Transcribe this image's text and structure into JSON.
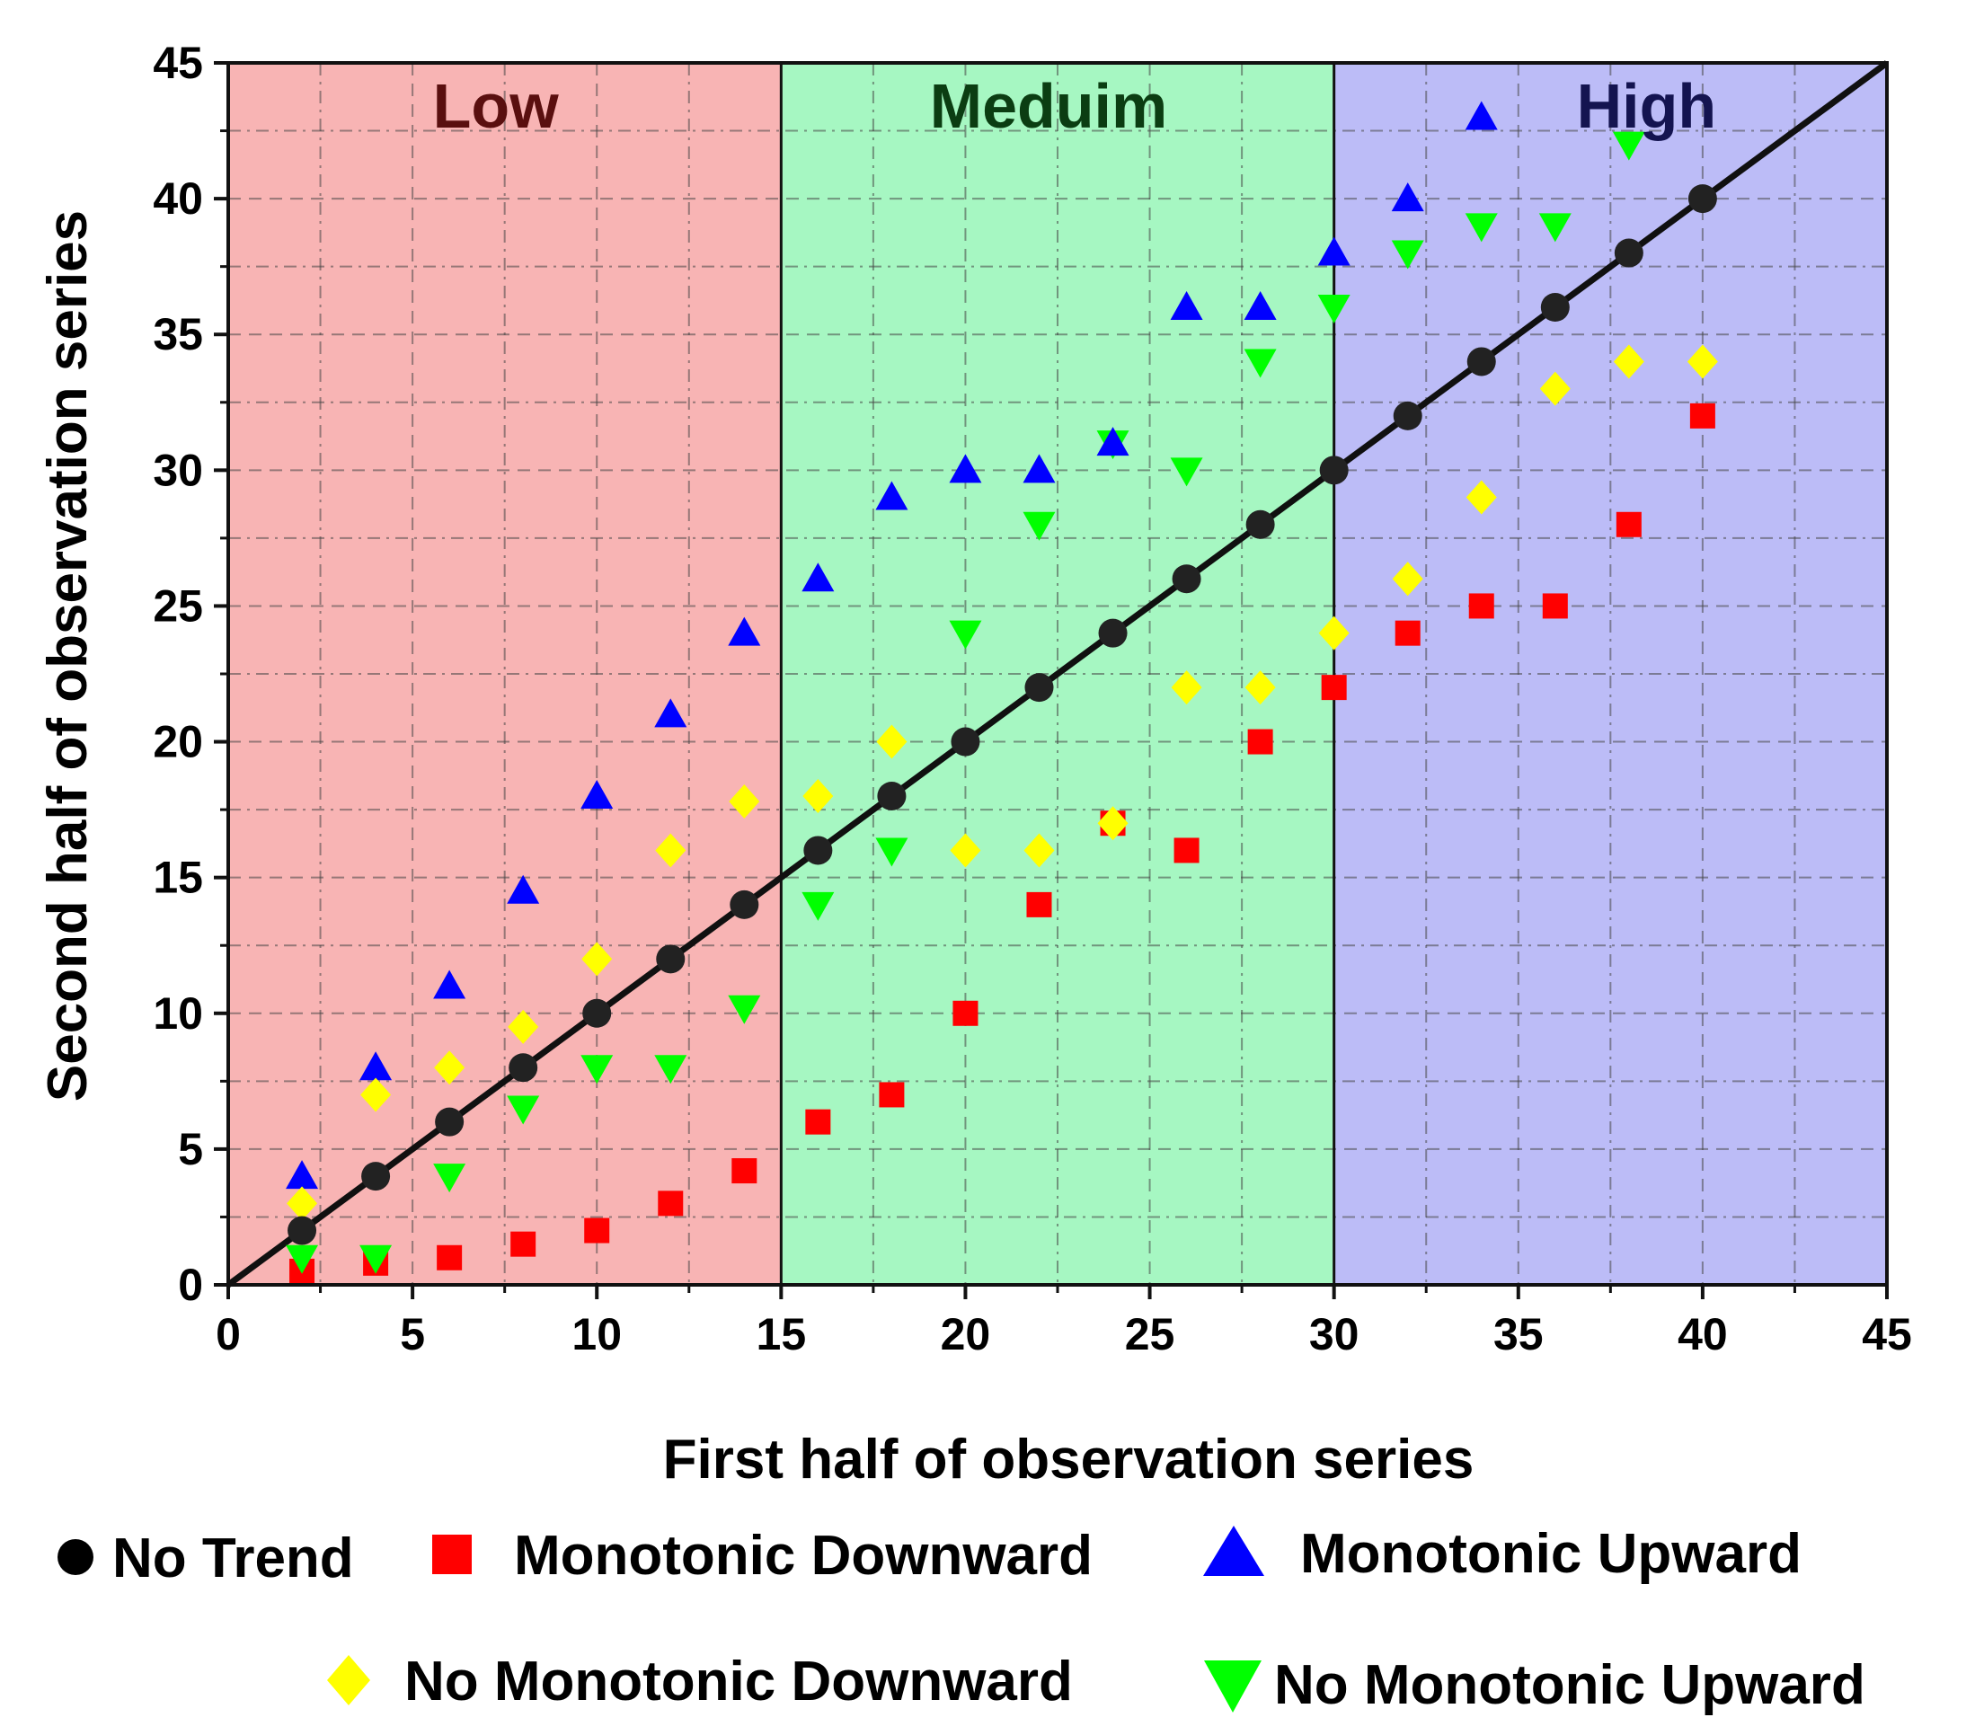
{
  "chart_data": {
    "type": "scatter",
    "title": "",
    "xlabel": "First half of observation series",
    "ylabel": "Second half of observation series",
    "xlim": [
      0,
      45
    ],
    "ylim": [
      0,
      45
    ],
    "xticks": [
      "0",
      "5",
      "10",
      "15",
      "20",
      "25",
      "30",
      "35",
      "40",
      "45"
    ],
    "yticks": [
      "0",
      "5",
      "10",
      "15",
      "20",
      "25",
      "30",
      "35",
      "40",
      "45"
    ],
    "grid": true,
    "regions": [
      {
        "name": "Low",
        "x_range": [
          0,
          15
        ],
        "color": "#f8b4b4",
        "label_color": "#5a0f0f"
      },
      {
        "name": "Meduim",
        "x_range": [
          15,
          30
        ],
        "color": "#a6f7c2",
        "label_color": "#0b3d12"
      },
      {
        "name": "High",
        "x_range": [
          30,
          45
        ],
        "color": "#bcbcf7",
        "label_color": "#141450"
      }
    ],
    "reference_line": {
      "name": "1:1 line",
      "from": [
        0,
        0
      ],
      "to": [
        45,
        45
      ]
    },
    "series": [
      {
        "name": "No Trend",
        "marker": "circle",
        "color": "#222222",
        "points": [
          [
            2,
            2
          ],
          [
            4,
            4
          ],
          [
            6,
            6
          ],
          [
            8,
            8
          ],
          [
            10,
            10
          ],
          [
            12,
            12
          ],
          [
            14,
            14
          ],
          [
            16,
            16
          ],
          [
            18,
            18
          ],
          [
            20,
            20
          ],
          [
            22,
            22
          ],
          [
            24,
            24
          ],
          [
            26,
            26
          ],
          [
            28,
            28
          ],
          [
            30,
            30
          ],
          [
            32,
            32
          ],
          [
            34,
            34
          ],
          [
            36,
            36
          ],
          [
            38,
            38
          ],
          [
            40,
            40
          ]
        ]
      },
      {
        "name": "Monotonic Downward",
        "marker": "square",
        "color": "#ff0000",
        "points": [
          [
            2,
            0.5
          ],
          [
            4,
            0.8
          ],
          [
            6,
            1
          ],
          [
            8,
            1.5
          ],
          [
            10,
            2
          ],
          [
            12,
            3
          ],
          [
            14,
            4.2
          ],
          [
            16,
            6
          ],
          [
            18,
            7
          ],
          [
            20,
            10
          ],
          [
            22,
            14
          ],
          [
            24,
            17
          ],
          [
            26,
            16
          ],
          [
            28,
            20
          ],
          [
            30,
            22
          ],
          [
            32,
            24
          ],
          [
            34,
            25
          ],
          [
            36,
            25
          ],
          [
            38,
            28
          ],
          [
            40,
            32
          ]
        ]
      },
      {
        "name": "Monotonic Upward",
        "marker": "triangle-up",
        "color": "#0000ff",
        "points": [
          [
            2,
            4
          ],
          [
            4,
            8
          ],
          [
            6,
            11
          ],
          [
            8,
            14.5
          ],
          [
            10,
            18
          ],
          [
            12,
            21
          ],
          [
            14,
            24
          ],
          [
            16,
            26
          ],
          [
            18,
            29
          ],
          [
            20,
            30
          ],
          [
            22,
            30
          ],
          [
            24,
            31
          ],
          [
            26,
            36
          ],
          [
            28,
            36
          ],
          [
            30,
            38
          ],
          [
            32,
            40
          ],
          [
            34,
            43
          ]
        ]
      },
      {
        "name": "No Monotonic Downward",
        "marker": "diamond",
        "color": "#ffff00",
        "points": [
          [
            2,
            3
          ],
          [
            4,
            7
          ],
          [
            6,
            8
          ],
          [
            8,
            9.5
          ],
          [
            10,
            12
          ],
          [
            12,
            16
          ],
          [
            14,
            17.8
          ],
          [
            16,
            18
          ],
          [
            18,
            20
          ],
          [
            20,
            16
          ],
          [
            22,
            16
          ],
          [
            24,
            17
          ],
          [
            26,
            22
          ],
          [
            28,
            22
          ],
          [
            30,
            24
          ],
          [
            32,
            26
          ],
          [
            34,
            29
          ],
          [
            36,
            33
          ],
          [
            38,
            34
          ],
          [
            40,
            34
          ]
        ]
      },
      {
        "name": "No Monotonic Upward",
        "marker": "triangle-down",
        "color": "#00ff00",
        "points": [
          [
            2,
            1
          ],
          [
            4,
            1
          ],
          [
            6,
            4
          ],
          [
            8,
            6.5
          ],
          [
            10,
            8
          ],
          [
            12,
            8
          ],
          [
            14,
            10.2
          ],
          [
            16,
            14
          ],
          [
            18,
            16
          ],
          [
            20,
            24
          ],
          [
            22,
            28
          ],
          [
            24,
            31
          ],
          [
            26,
            30
          ],
          [
            28,
            34
          ],
          [
            30,
            36
          ],
          [
            32,
            38
          ],
          [
            34,
            39
          ],
          [
            36,
            39
          ],
          [
            38,
            42
          ]
        ]
      }
    ],
    "legend": {
      "placement": "bottom",
      "entries": [
        "No Trend",
        "Monotonic Downward",
        "Monotonic Upward",
        "No Monotonic Downward",
        "No Monotonic Upward"
      ]
    }
  }
}
